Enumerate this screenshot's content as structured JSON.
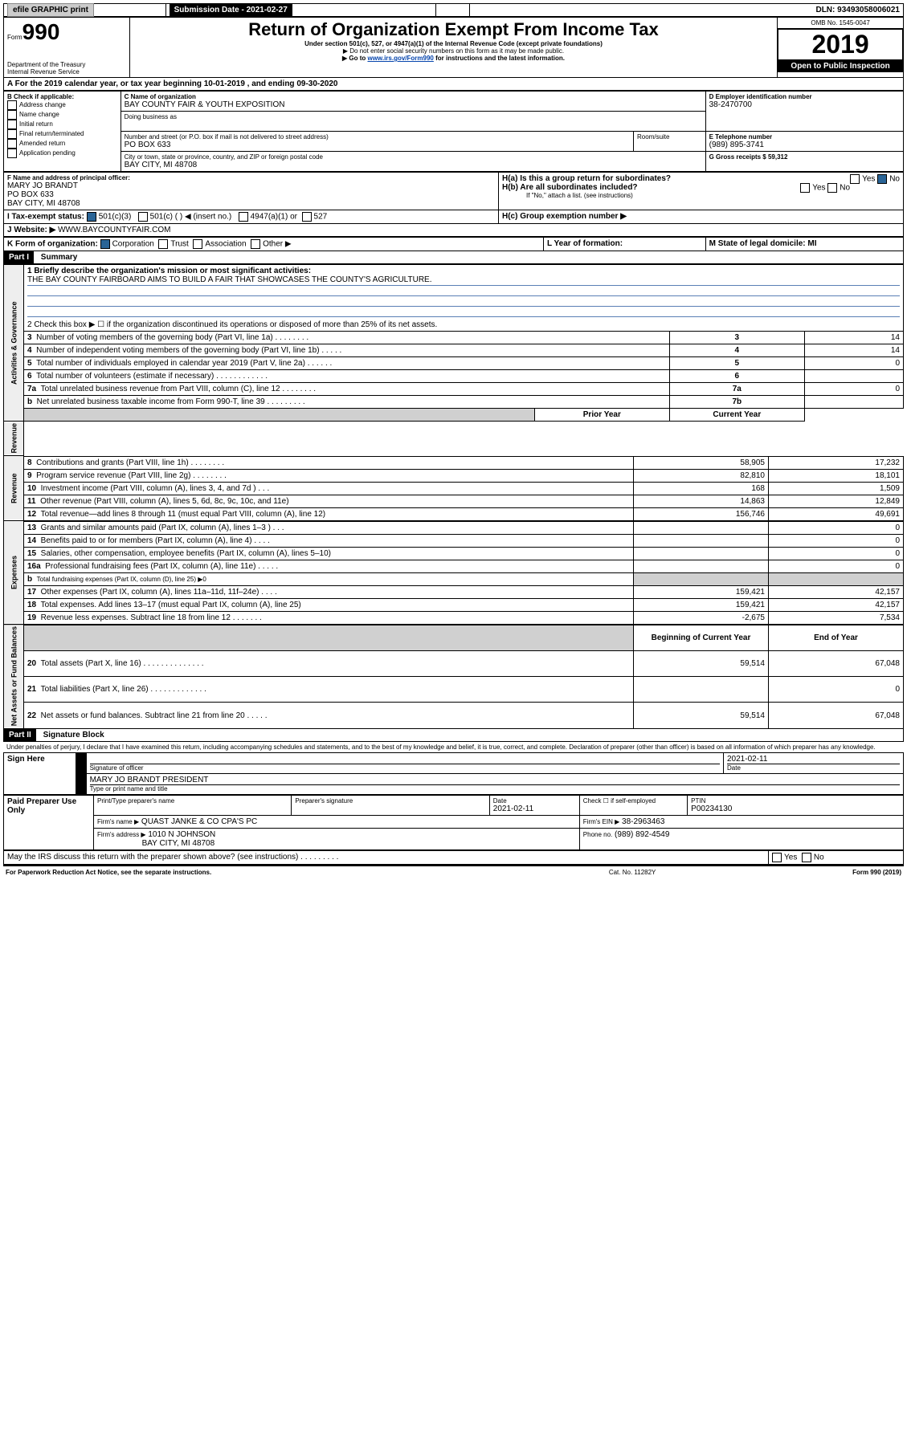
{
  "top": {
    "efile": "efile GRAPHIC print",
    "subm_label": "Submission Date - 2021-02-27",
    "dln_label": "DLN: 93493058006021",
    "form_label": "Form",
    "form_no": "990",
    "title": "Return of Organization Exempt From Income Tax",
    "sub1": "Under section 501(c), 527, or 4947(a)(1) of the Internal Revenue Code (except private foundations)",
    "sub2": "▶ Do not enter social security numbers on this form as it may be made public.",
    "sub3_pre": "▶ Go to ",
    "sub3_link": "www.irs.gov/Form990",
    "sub3_post": " for instructions and the latest information.",
    "dept": "Department of the Treasury\nInternal Revenue Service",
    "omb": "OMB No. 1545-0047",
    "year": "2019",
    "open": "Open to Public Inspection"
  },
  "a": {
    "line": "A For the 2019 calendar year, or tax year beginning 10-01-2019    , and ending 09-30-2020"
  },
  "b": {
    "hdr": "B Check if applicable:",
    "o1": "Address change",
    "o2": "Name change",
    "o3": "Initial return",
    "o4": "Final return/terminated",
    "o5": "Amended return",
    "o6": "Application pending"
  },
  "c": {
    "name_lbl": "C Name of organization",
    "name": "BAY COUNTY FAIR & YOUTH EXPOSITION",
    "dba_lbl": "Doing business as",
    "addr_lbl": "Number and street (or P.O. box if mail is not delivered to street address)",
    "room_lbl": "Room/suite",
    "addr": "PO BOX 633",
    "city_lbl": "City or town, state or province, country, and ZIP or foreign postal code",
    "city": "BAY CITY, MI  48708"
  },
  "d": {
    "lbl": "D Employer identification number",
    "val": "38-2470700"
  },
  "e": {
    "lbl": "E Telephone number",
    "val": "(989) 895-3741"
  },
  "g": {
    "lbl": "G Gross receipts $ 59,312"
  },
  "f": {
    "lbl": "F  Name and address of principal officer:",
    "l1": "MARY JO BRANDT",
    "l2": "PO BOX 633",
    "l3": "BAY CITY, MI  48708"
  },
  "h": {
    "ha": "H(a)  Is this a group return for subordinates?",
    "hb": "H(b)  Are all subordinates included?",
    "hb2": "If \"No,\" attach a list. (see instructions)",
    "hc": "H(c)  Group exemption number ▶",
    "yes": "Yes",
    "no": "No"
  },
  "i": {
    "lbl": "I     Tax-exempt status:",
    "o1": "501(c)(3)",
    "o2": "501(c) (    ) ◀ (insert no.)",
    "o3": "4947(a)(1) or",
    "o4": "527"
  },
  "j": {
    "lbl": "J     Website: ▶",
    "val": "WWW.BAYCOUNTYFAIR.COM"
  },
  "k": {
    "lbl": "K Form of organization:",
    "o1": "Corporation",
    "o2": "Trust",
    "o3": "Association",
    "o4": "Other ▶"
  },
  "l": {
    "lbl": "L Year of formation:"
  },
  "m": {
    "lbl": "M State of legal domicile: MI"
  },
  "part1": {
    "hdr": "Part I",
    "title": "Summary",
    "q1": "1   Briefly describe the organization's mission or most significant activities:",
    "q1a": "THE BAY COUNTY FAIRBOARD AIMS TO BUILD A FAIR THAT SHOWCASES THE COUNTY'S AGRICULTURE.",
    "q2": "2   Check this box ▶ ☐  if the organization discontinued its operations or disposed of more than 25% of its net assets.",
    "rows_top": [
      {
        "n": "3",
        "t": "Number of voting members of the governing body (Part VI, line 1a)   .     .     .     .     .     .     .     .",
        "c": "3",
        "v": "14"
      },
      {
        "n": "4",
        "t": "Number of independent voting members of the governing body (Part VI, line 1b)   .    .    .    .    .",
        "c": "4",
        "v": "14"
      },
      {
        "n": "5",
        "t": "Total number of individuals employed in calendar year 2019 (Part V, line 2a)   .    .    .    .    .    .",
        "c": "5",
        "v": "0"
      },
      {
        "n": "6",
        "t": "Total number of volunteers (estimate if necessary)   .    .    .    .    .    .    .    .    .    .    .    .",
        "c": "6",
        "v": ""
      },
      {
        "n": "7a",
        "t": "Total unrelated business revenue from Part VIII, column (C), line 12   .    .    .    .    .    .    .    .",
        "c": "7a",
        "v": "0"
      },
      {
        "n": "b",
        "t": "Net unrelated business taxable income from Form 990-T, line 39   .    .    .    .    .    .    .    .    .",
        "c": "7b",
        "v": ""
      }
    ],
    "col_prior": "Prior Year",
    "col_curr": "Current Year",
    "section_ag": "Activities & Governance",
    "section_rev": "Revenue",
    "section_exp": "Expenses",
    "section_na": "Net Assets or Fund Balances",
    "rows_rev": [
      {
        "n": "8",
        "t": "Contributions and grants (Part VIII, line 1h)   .    .    .    .    .    .    .    .",
        "p": "58,905",
        "c": "17,232"
      },
      {
        "n": "9",
        "t": "Program service revenue (Part VIII, line 2g)   .    .    .    .    .    .    .    .",
        "p": "82,810",
        "c": "18,101"
      },
      {
        "n": "10",
        "t": "Investment income (Part VIII, column (A), lines 3, 4, and 7d )   .    .    .",
        "p": "168",
        "c": "1,509"
      },
      {
        "n": "11",
        "t": "Other revenue (Part VIII, column (A), lines 5, 6d, 8c, 9c, 10c, and 11e)",
        "p": "14,863",
        "c": "12,849"
      },
      {
        "n": "12",
        "t": "Total revenue—add lines 8 through 11 (must equal Part VIII, column (A), line 12)",
        "p": "156,746",
        "c": "49,691"
      }
    ],
    "rows_exp": [
      {
        "n": "13",
        "t": "Grants and similar amounts paid (Part IX, column (A), lines 1–3 )   .    .    .",
        "p": "",
        "c": "0"
      },
      {
        "n": "14",
        "t": "Benefits paid to or for members (Part IX, column (A), line 4)   .    .    .    .",
        "p": "",
        "c": "0"
      },
      {
        "n": "15",
        "t": "Salaries, other compensation, employee benefits (Part IX, column (A), lines 5–10)",
        "p": "",
        "c": "0"
      },
      {
        "n": "16a",
        "t": "Professional fundraising fees (Part IX, column (A), line 11e)   .    .    .    .    .",
        "p": "",
        "c": "0"
      },
      {
        "n": "b",
        "t": "Total fundraising expenses (Part IX, column (D), line 25) ▶0",
        "p": "GRAY",
        "c": "GRAY"
      },
      {
        "n": "17",
        "t": "Other expenses (Part IX, column (A), lines 11a–11d, 11f–24e)   .    .    .    .",
        "p": "159,421",
        "c": "42,157"
      },
      {
        "n": "18",
        "t": "Total expenses. Add lines 13–17 (must equal Part IX, column (A), line 25)",
        "p": "159,421",
        "c": "42,157"
      },
      {
        "n": "19",
        "t": "Revenue less expenses. Subtract line 18 from line 12   .    .    .    .    .    .    .",
        "p": "-2,675",
        "c": "7,534"
      }
    ],
    "col_beg": "Beginning of Current Year",
    "col_end": "End of Year",
    "rows_na": [
      {
        "n": "20",
        "t": "Total assets (Part X, line 16)   .    .    .    .    .    .    .    .    .    .    .    .    .    .",
        "p": "59,514",
        "c": "67,048"
      },
      {
        "n": "21",
        "t": "Total liabilities (Part X, line 26)   .    .    .    .    .    .    .    .    .    .    .    .    .",
        "p": "",
        "c": "0"
      },
      {
        "n": "22",
        "t": "Net assets or fund balances. Subtract line 21 from line 20   .    .    .    .    .",
        "p": "59,514",
        "c": "67,048"
      }
    ]
  },
  "part2": {
    "hdr": "Part II",
    "title": "Signature Block",
    "decl": "Under penalties of perjury, I declare that I have examined this return, including accompanying schedules and statements, and to the best of my knowledge and belief, it is true, correct, and complete. Declaration of preparer (other than officer) is based on all information of which preparer has any knowledge.",
    "sign_here": "Sign Here",
    "sig_lbl": "Signature of officer",
    "date_lbl": "Date",
    "date": "2021-02-11",
    "name": "MARY JO BRANDT  PRESIDENT",
    "name_lbl": "Type or print name and title",
    "paid": "Paid Preparer Use Only",
    "pp_name_lbl": "Print/Type preparer's name",
    "pp_sig_lbl": "Preparer's signature",
    "pp_date_lbl": "Date",
    "pp_date": "2021-02-11",
    "pp_chk": "Check ☐ if self-employed",
    "ptin_lbl": "PTIN",
    "ptin": "P00234130",
    "firm_name_lbl": "Firm's name    ▶",
    "firm_name": "QUAST JANKE & CO CPA'S PC",
    "firm_ein_lbl": "Firm's EIN ▶",
    "firm_ein": "38-2963463",
    "firm_addr_lbl": "Firm's address ▶",
    "firm_addr1": "1010 N JOHNSON",
    "firm_addr2": "BAY CITY, MI  48708",
    "phone_lbl": "Phone no.",
    "phone": "(989) 892-4549",
    "discuss": "May the IRS discuss this return with the preparer shown above? (see instructions)   .    .    .    .    .    .    .    .    .",
    "yes": "Yes",
    "no": "No",
    "pra": "For Paperwork Reduction Act Notice, see the separate instructions.",
    "cat": "Cat. No. 11282Y",
    "formv": "Form 990 (2019)"
  }
}
